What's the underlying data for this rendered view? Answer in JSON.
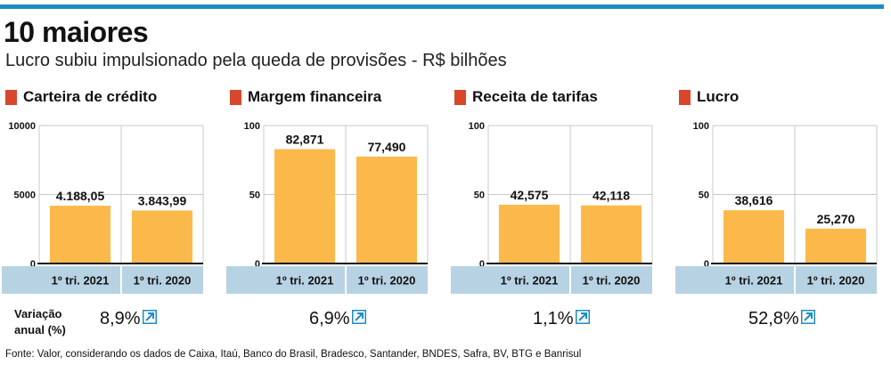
{
  "header": {
    "title": "10 maiores",
    "subtitle": "Lucro subiu impulsionado pela queda de provisões - R$ bilhões"
  },
  "colors": {
    "accent_bar": "#1e8bc3",
    "bar_fill": "#fbb94b",
    "label_band": "#b7d2e3",
    "legend_square": "#d9472b",
    "arrow": "#1e8bc3"
  },
  "variation": {
    "label_line1": "Variação",
    "label_line2": "anual (%)"
  },
  "source": "Fonte: Valor, considerando os dados de Caixa, Itaú, Banco do Brasil, Bradesco, Santander, BNDES, Safra, BV, BTG e Banrisul",
  "chart_data": [
    {
      "type": "bar",
      "title": "Carteira de crédito",
      "categories": [
        "1º tri. 2021",
        "1º tri. 2020"
      ],
      "values": [
        4188.05,
        3843.99
      ],
      "value_labels": [
        "4.188,05",
        "3.843,99"
      ],
      "yticks": [
        "0",
        "5000",
        "10000"
      ],
      "ylim": [
        0,
        10000
      ],
      "variation": "8,9%",
      "grid": true
    },
    {
      "type": "bar",
      "title": "Margem financeira",
      "categories": [
        "1º tri. 2021",
        "1º tri. 2020"
      ],
      "values": [
        82.871,
        77.49
      ],
      "value_labels": [
        "82,871",
        "77,490"
      ],
      "yticks": [
        "0",
        "50",
        "100"
      ],
      "ylim": [
        0,
        100
      ],
      "variation": "6,9%",
      "grid": true
    },
    {
      "type": "bar",
      "title": "Receita de tarifas",
      "categories": [
        "1º tri. 2021",
        "1º tri. 2020"
      ],
      "values": [
        42.575,
        42.118
      ],
      "value_labels": [
        "42,575",
        "42,118"
      ],
      "yticks": [
        "0",
        "50",
        "100"
      ],
      "ylim": [
        0,
        100
      ],
      "variation": "1,1%",
      "grid": true
    },
    {
      "type": "bar",
      "title": "Lucro",
      "categories": [
        "1º tri. 2021",
        "1º tri. 2020"
      ],
      "values": [
        38.616,
        25.27
      ],
      "value_labels": [
        "38,616",
        "25,270"
      ],
      "yticks": [
        "0",
        "50",
        "100"
      ],
      "ylim": [
        0,
        100
      ],
      "variation": "52,8%",
      "grid": true
    }
  ]
}
